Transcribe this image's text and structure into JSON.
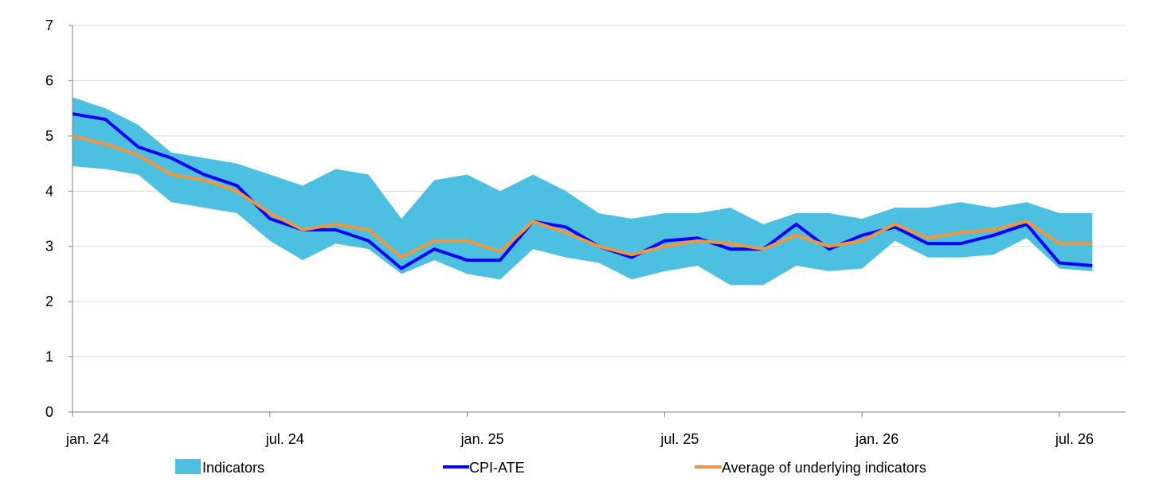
{
  "chart_data": {
    "type": "line",
    "title": "",
    "xlabel": "",
    "ylabel": "",
    "ylim": [
      0,
      7
    ],
    "yticks": [
      0,
      1,
      2,
      3,
      4,
      5,
      6,
      7
    ],
    "grid": true,
    "legend_position": "bottom",
    "x": [
      "2024-01",
      "2024-02",
      "2024-03",
      "2024-04",
      "2024-05",
      "2024-06",
      "2024-07",
      "2024-08",
      "2024-09",
      "2024-10",
      "2024-11",
      "2024-12",
      "2025-01",
      "2025-02",
      "2025-03",
      "2025-04",
      "2025-05",
      "2025-06",
      "2025-07",
      "2025-08",
      "2025-09",
      "2025-10",
      "2025-11",
      "2025-12",
      "2026-01",
      "2026-02",
      "2026-03",
      "2026-04",
      "2026-05",
      "2026-06",
      "2026-07",
      "2026-08"
    ],
    "x_ticks": [
      {
        "x": "2024-01",
        "label": "jan. 24"
      },
      {
        "x": "2024-07",
        "label": "jul. 24"
      },
      {
        "x": "2025-01",
        "label": "jan. 25"
      },
      {
        "x": "2025-07",
        "label": "jul. 25"
      },
      {
        "x": "2026-01",
        "label": "jan. 26"
      },
      {
        "x": "2026-07",
        "label": "jul. 26"
      }
    ],
    "series": [
      {
        "name": "Indicators",
        "kind": "band",
        "color": "#4dc0e2",
        "upper": [
          5.7,
          5.5,
          5.2,
          4.7,
          4.6,
          4.5,
          4.3,
          4.1,
          4.4,
          4.3,
          3.5,
          4.2,
          4.3,
          4.0,
          4.3,
          4.0,
          3.6,
          3.5,
          3.6,
          3.6,
          3.7,
          3.4,
          3.6,
          3.6,
          3.5,
          3.7,
          3.7,
          3.8,
          3.7,
          3.8,
          3.6,
          3.6
        ],
        "lower": [
          4.45,
          4.4,
          4.3,
          3.8,
          3.7,
          3.6,
          3.1,
          2.75,
          3.05,
          2.95,
          2.5,
          2.75,
          2.5,
          2.4,
          2.95,
          2.8,
          2.7,
          2.4,
          2.55,
          2.65,
          2.3,
          2.3,
          2.65,
          2.55,
          2.6,
          3.1,
          2.8,
          2.8,
          2.85,
          3.15,
          2.6,
          2.55
        ]
      },
      {
        "name": "CPI-ATE",
        "kind": "line",
        "color": "#0000ff",
        "values": [
          5.4,
          5.3,
          4.8,
          4.6,
          4.3,
          4.1,
          3.5,
          3.3,
          3.3,
          3.1,
          2.6,
          2.95,
          2.75,
          2.75,
          3.45,
          3.35,
          3.0,
          2.8,
          3.1,
          3.15,
          2.95,
          2.95,
          3.4,
          2.95,
          3.2,
          3.35,
          3.05,
          3.05,
          3.2,
          3.4,
          2.7,
          2.65
        ]
      },
      {
        "name": "Average of underlying indicators",
        "kind": "line",
        "color": "#f2963c",
        "values": [
          5.0,
          4.85,
          4.65,
          4.3,
          4.2,
          4.0,
          3.6,
          3.3,
          3.4,
          3.3,
          2.8,
          3.1,
          3.1,
          2.9,
          3.45,
          3.25,
          3.0,
          2.85,
          3.0,
          3.1,
          3.05,
          2.95,
          3.2,
          3.0,
          3.1,
          3.4,
          3.15,
          3.25,
          3.3,
          3.45,
          3.05,
          3.05
        ]
      }
    ]
  },
  "legend": [
    {
      "label": "Indicators",
      "color": "#4dc0e2",
      "kind": "swatch"
    },
    {
      "label": "CPI-ATE",
      "color": "#0000ff",
      "kind": "line"
    },
    {
      "label": "Average of underlying indicators",
      "color": "#f2963c",
      "kind": "line"
    }
  ]
}
